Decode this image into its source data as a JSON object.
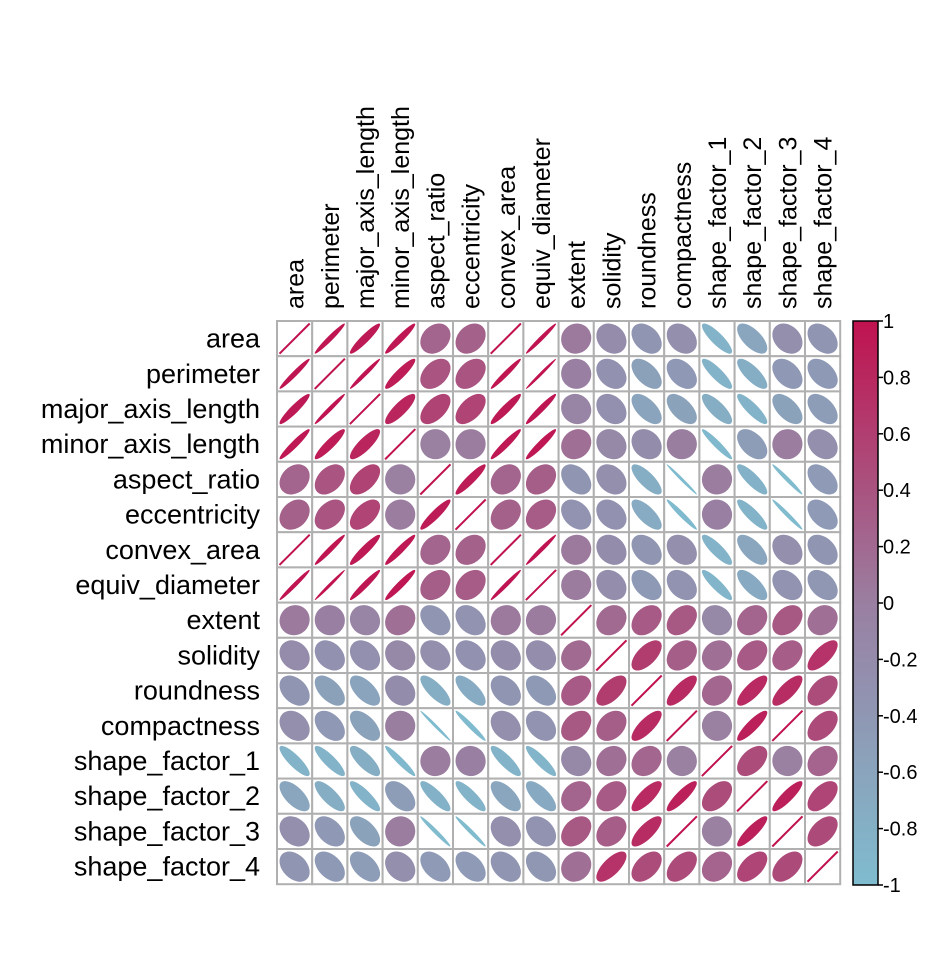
{
  "chart_data": {
    "type": "heatmap",
    "style": "ellipse correlation matrix",
    "variables": [
      "area",
      "perimeter",
      "major_axis_length",
      "minor_axis_length",
      "aspect_ratio",
      "eccentricity",
      "convex_area",
      "equiv_diameter",
      "extent",
      "solidity",
      "roundness",
      "compactness",
      "shape_factor_1",
      "shape_factor_2",
      "shape_factor_3",
      "shape_factor_4"
    ],
    "matrix": [
      [
        1,
        0.97,
        0.93,
        0.95,
        0.24,
        0.27,
        1,
        0.98,
        0.05,
        -0.2,
        -0.36,
        -0.27,
        -0.85,
        -0.64,
        -0.27,
        -0.36
      ],
      [
        0.97,
        1,
        0.98,
        0.91,
        0.39,
        0.39,
        0.97,
        0.99,
        -0.02,
        -0.3,
        -0.55,
        -0.41,
        -0.86,
        -0.77,
        -0.41,
        -0.43
      ],
      [
        0.93,
        0.98,
        1,
        0.83,
        0.55,
        0.54,
        0.93,
        0.96,
        -0.08,
        -0.28,
        -0.6,
        -0.57,
        -0.77,
        -0.86,
        -0.57,
        -0.48
      ],
      [
        0.95,
        0.91,
        0.83,
        1,
        -0.01,
        0.02,
        0.95,
        0.95,
        0.15,
        -0.16,
        -0.21,
        0.01,
        -0.95,
        -0.47,
        0.02,
        -0.26
      ],
      [
        0.24,
        0.39,
        0.55,
        -0.01,
        1,
        0.92,
        0.24,
        0.3,
        -0.37,
        -0.27,
        -0.77,
        -0.99,
        0.02,
        -0.84,
        -0.98,
        -0.45
      ],
      [
        0.27,
        0.39,
        0.54,
        0.02,
        0.92,
        1,
        0.27,
        0.32,
        -0.32,
        -0.3,
        -0.72,
        -0.97,
        -0.02,
        -0.86,
        -0.98,
        -0.45
      ],
      [
        1,
        0.97,
        0.93,
        0.95,
        0.24,
        0.27,
        1,
        0.98,
        0.05,
        -0.21,
        -0.36,
        -0.27,
        -0.85,
        -0.64,
        -0.27,
        -0.36
      ],
      [
        0.98,
        0.99,
        0.96,
        0.95,
        0.3,
        0.32,
        0.98,
        1,
        0.03,
        -0.23,
        -0.44,
        -0.33,
        -0.89,
        -0.71,
        -0.33,
        -0.39
      ],
      [
        0.05,
        -0.02,
        -0.08,
        0.15,
        -0.37,
        -0.32,
        0.05,
        0.03,
        1,
        0.19,
        0.34,
        0.35,
        -0.14,
        0.24,
        0.35,
        0.15
      ],
      [
        -0.2,
        -0.3,
        -0.28,
        -0.16,
        -0.27,
        -0.3,
        -0.21,
        -0.23,
        0.19,
        1,
        0.61,
        0.3,
        0.15,
        0.34,
        0.31,
        0.7
      ],
      [
        -0.36,
        -0.55,
        -0.6,
        -0.21,
        -0.77,
        -0.72,
        -0.36,
        -0.44,
        0.34,
        0.61,
        1,
        0.77,
        0.23,
        0.78,
        0.76,
        0.47
      ],
      [
        -0.27,
        -0.41,
        -0.57,
        0.01,
        -0.99,
        -0.97,
        -0.27,
        -0.33,
        0.35,
        0.3,
        0.77,
        1,
        -0.01,
        0.87,
        1,
        0.48
      ],
      [
        -0.85,
        -0.86,
        -0.77,
        -0.95,
        0.02,
        -0.02,
        -0.85,
        -0.89,
        -0.14,
        0.15,
        0.23,
        -0.01,
        1,
        0.47,
        -0.01,
        0.25
      ],
      [
        -0.64,
        -0.77,
        -0.86,
        -0.47,
        -0.84,
        -0.86,
        -0.64,
        -0.71,
        0.24,
        0.34,
        0.78,
        0.87,
        0.47,
        1,
        0.87,
        0.53
      ],
      [
        -0.27,
        -0.41,
        -0.57,
        0.02,
        -0.98,
        -0.98,
        -0.27,
        -0.33,
        0.35,
        0.31,
        0.76,
        1,
        -0.01,
        0.87,
        1,
        0.48
      ],
      [
        -0.36,
        -0.43,
        -0.48,
        -0.26,
        -0.45,
        -0.45,
        -0.36,
        -0.39,
        0.15,
        0.7,
        0.47,
        0.48,
        0.25,
        0.53,
        0.48,
        1
      ]
    ],
    "colorbar": {
      "range": [
        -1,
        1
      ],
      "ticks": [
        "1",
        "0.8",
        "0.6",
        "0.4",
        "0.2",
        "0",
        "-0.2",
        "-0.4",
        "-0.6",
        "-0.8",
        "-1"
      ],
      "colors": {
        "negative": "#7FBCCF",
        "zero": "#9A7FA1",
        "positive": "#C0124F"
      }
    },
    "grid_color": "#B0B0B0",
    "legend_position": "right"
  }
}
